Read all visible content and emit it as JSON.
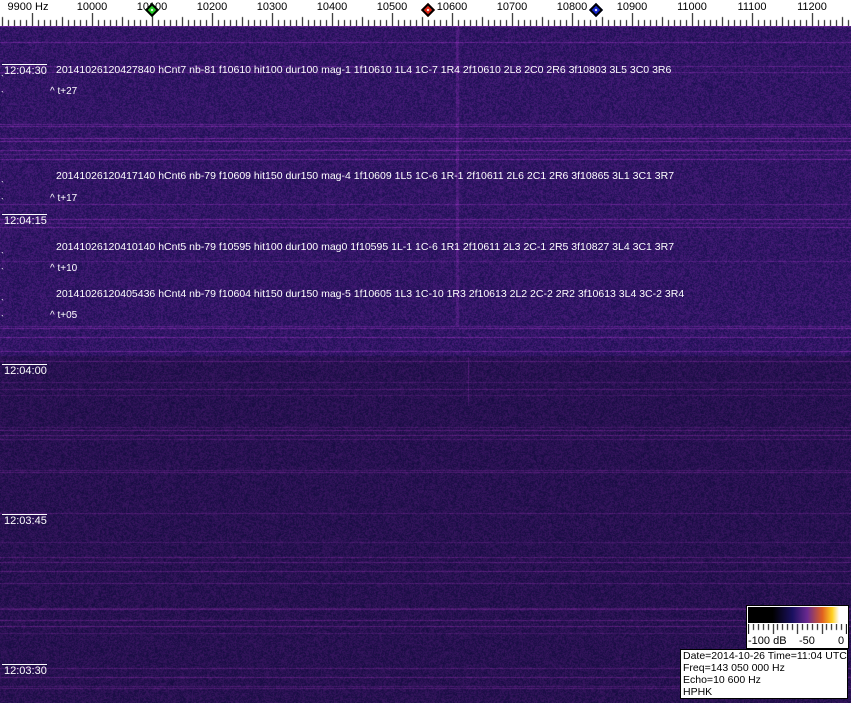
{
  "chart_data": {
    "type": "heatmap",
    "x_unit": "Hz",
    "x_ticks": [
      "9900 Hz",
      "10000",
      "10100",
      "10200",
      "10300",
      "10400",
      "10500",
      "10600",
      "10700",
      "10800",
      "10900",
      "11000",
      "11100",
      "11200"
    ],
    "x_tick_values": [
      9900,
      10000,
      10100,
      10200,
      10300,
      10400,
      10500,
      10600,
      10700,
      10800,
      10900,
      11000,
      11100,
      11200
    ],
    "xlim": [
      9850,
      11265
    ],
    "y_ticks": [
      "12:04:30",
      "12:04:15",
      "12:04:00",
      "12:03:45",
      "12:03:30"
    ],
    "markers": [
      {
        "freq": 10100,
        "color": "#22cc22"
      },
      {
        "freq": 10560,
        "color": "#dd2211"
      },
      {
        "freq": 10840,
        "color": "#1122cc"
      }
    ],
    "colorbar": {
      "labels": [
        "-100 dB",
        "-50",
        "0"
      ],
      "range": [
        -100,
        0
      ]
    }
  },
  "detections": [
    {
      "text": "20141026120427840 hCnt7 nb-81 f10610 hit100 dur100 mag-1 1f10610 1L4 1C-7 1R4 2f10610 2L8 2C0 2R6 3f10803 3L5 3C0 3R6",
      "offset": "^ t+27"
    },
    {
      "text": "20141026120417140 hCnt6 nb-79 f10609 hit150 dur150 mag-4 1f10609 1L5 1C-6 1R-1 2f10611 2L6 2C1 2R6 3f10865 3L1 3C1 3R7",
      "offset": "^ t+17"
    },
    {
      "text": "20141026120410140 hCnt5 nb-79 f10595 hit100 dur100 mag0 1f10595 1L-1 1C-6 1R1 2f10611 2L3 2C-1 2R5 3f10827 3L4 3C1 3R7",
      "offset": "^ t+10"
    },
    {
      "text": "20141026120405436 hCnt4 nb-79 f10604 hit150 dur150 mag-5 1f10605 1L3 1C-10 1R3 2f10613 2L2 2C-2 2R2 3f10613 3L4 3C-2 3R4",
      "offset": "^ t+05"
    }
  ],
  "info": {
    "line1": "Date=2014-10-26 Time=11:04 UTC",
    "line2": "Freq=143 050 000 Hz",
    "line3": "Echo=10 600 Hz",
    "line4": "HPHK"
  }
}
